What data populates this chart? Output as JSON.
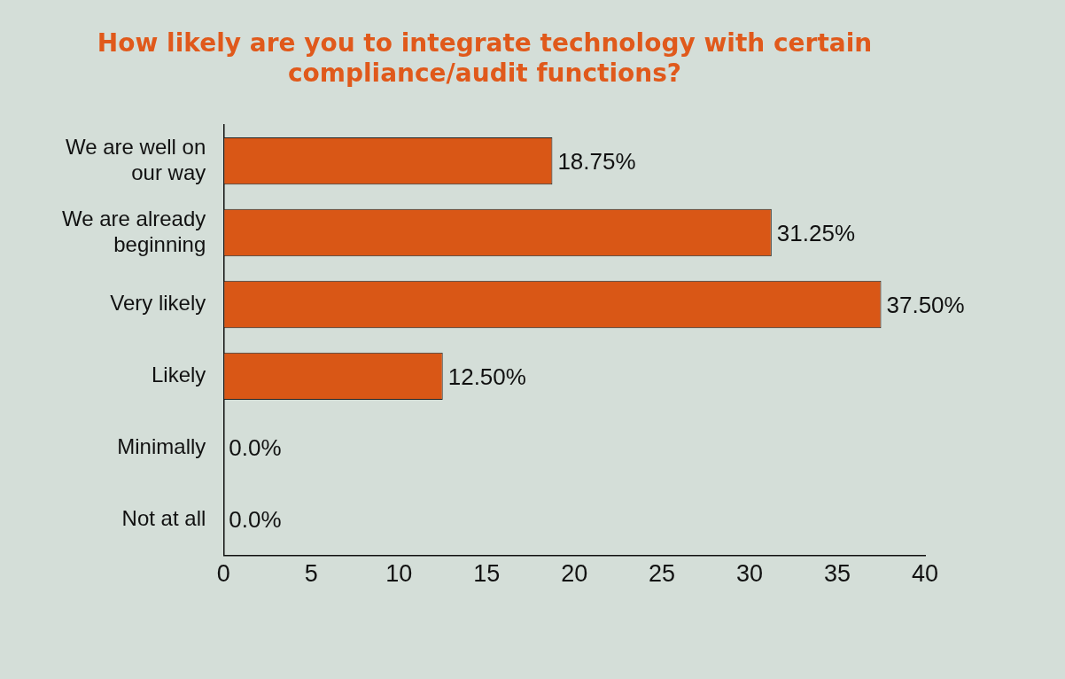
{
  "chart_data": {
    "type": "bar",
    "orientation": "horizontal",
    "title": "How likely are you to integrate technology with certain compliance/audit functions?",
    "categories": [
      "We are well on our way",
      "We are already beginning",
      "Very likely",
      "Likely",
      "Minimally",
      "Not at all"
    ],
    "values": [
      18.75,
      31.25,
      37.5,
      12.5,
      0,
      0
    ],
    "value_labels": [
      "18.75%",
      "31.25%",
      "37.50%",
      "12.50%",
      "0.0%",
      "0.0%"
    ],
    "color": "#d95716",
    "xlim": [
      0,
      40
    ],
    "xticks": [
      0,
      5,
      10,
      15,
      20,
      25,
      30,
      35,
      40
    ],
    "grid": false,
    "legend": false
  }
}
